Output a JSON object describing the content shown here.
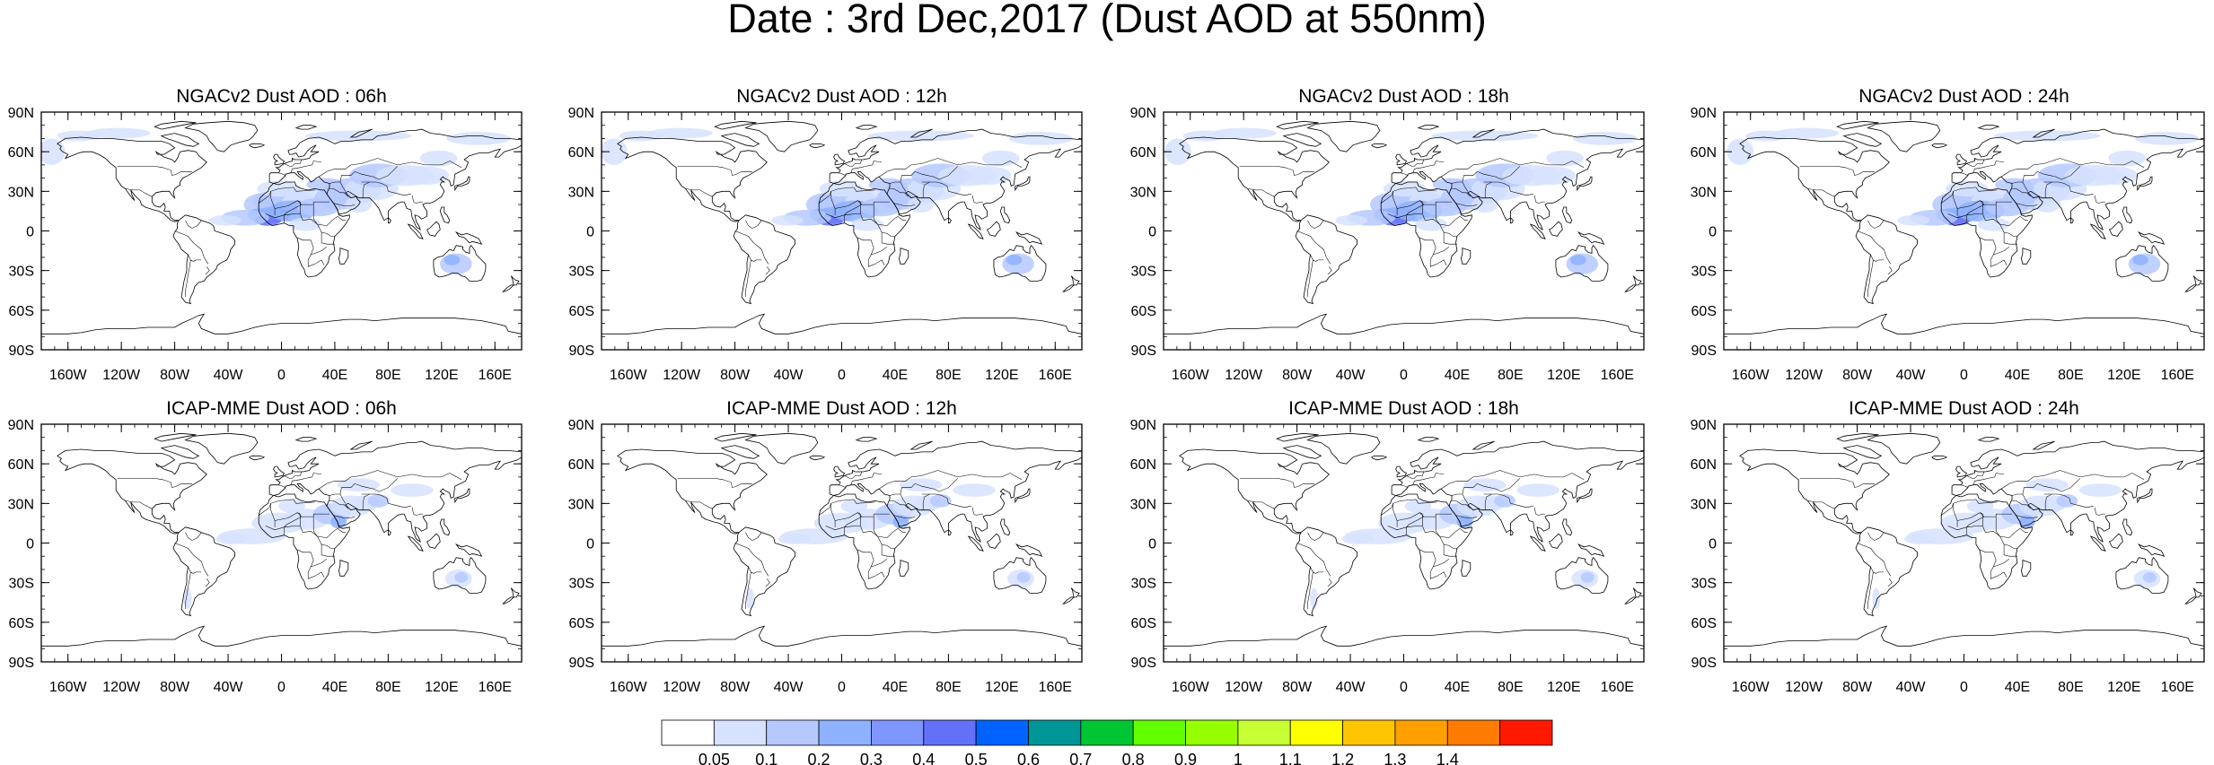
{
  "title": "Date : 3rd Dec,2017 (Dust AOD at 550nm)",
  "panels": [
    {
      "title": "NGACv2 Dust AOD : 06h"
    },
    {
      "title": "NGACv2 Dust AOD : 12h"
    },
    {
      "title": "NGACv2 Dust AOD : 18h"
    },
    {
      "title": "NGACv2 Dust AOD : 24h"
    },
    {
      "title": "ICAP-MME Dust AOD : 06h"
    },
    {
      "title": "ICAP-MME Dust AOD : 12h"
    },
    {
      "title": "ICAP-MME Dust AOD : 18h"
    },
    {
      "title": "ICAP-MME Dust AOD : 24h"
    }
  ],
  "x_ticks": [
    "160W",
    "120W",
    "80W",
    "40W",
    "0",
    "40E",
    "80E",
    "120E",
    "160E"
  ],
  "x_tick_lons": [
    -160,
    -120,
    -80,
    -40,
    0,
    40,
    80,
    120,
    160
  ],
  "y_ticks": [
    "90N",
    "60N",
    "30N",
    "0",
    "30S",
    "60S",
    "90S"
  ],
  "y_tick_lats": [
    90,
    60,
    30,
    0,
    -30,
    -60,
    -90
  ],
  "colorbar": {
    "labels": [
      "0.05",
      "0.1",
      "0.2",
      "0.3",
      "0.4",
      "0.5",
      "0.6",
      "0.7",
      "0.8",
      "0.9",
      "1",
      "1.1",
      "1.2",
      "1.3",
      "1.4"
    ],
    "colors": [
      "#ffffff",
      "#d6e2ff",
      "#b5c9ff",
      "#8eb2ff",
      "#7f96ff",
      "#6370f8",
      "#0063ff",
      "#009696",
      "#00c633",
      "#63ff00",
      "#96ff00",
      "#c6ff33",
      "#ffff00",
      "#ffc600",
      "#ffa000",
      "#ff7c00",
      "#ff1900"
    ]
  },
  "map": {
    "extent": {
      "lon": [
        -180,
        180
      ],
      "lat": [
        -90,
        90
      ]
    },
    "dust_colors": {
      "low": "#d6e2ff",
      "mid": "#b5c9ff",
      "high": "#8eb2ff",
      "peak": "#6370f8"
    }
  }
}
